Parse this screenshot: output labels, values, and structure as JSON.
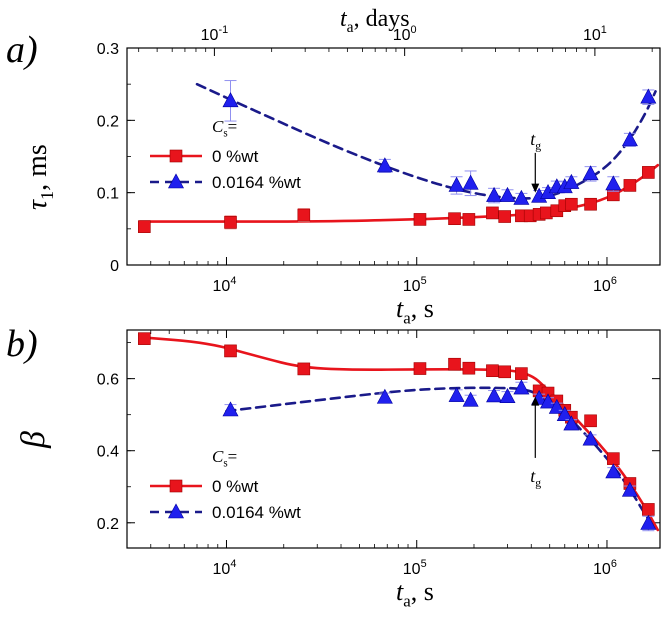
{
  "chart_data": [
    {
      "type": "scatter",
      "panel_label": "a)",
      "ylabel": "τ1, ms",
      "xlabel": "ta, s",
      "top_axis_label": "ta, days",
      "x_scale": "log",
      "xlim": [
        3000,
        1900000
      ],
      "ylim": [
        0,
        0.3
      ],
      "y_ticks": [
        "0",
        "0.1",
        "0.2",
        "0.3"
      ],
      "x_ticks": [
        {
          "base": "10",
          "exp": "4"
        },
        {
          "base": "10",
          "exp": "5"
        },
        {
          "base": "10",
          "exp": "6"
        }
      ],
      "top_ticks": [
        {
          "base": "10",
          "exp": "-1"
        },
        {
          "base": "10",
          "exp": "0"
        },
        {
          "base": "10",
          "exp": "1"
        }
      ],
      "legend": {
        "header": "Cs=",
        "entries": [
          "0 %wt",
          "0.0164 %wt"
        ],
        "position": "left"
      },
      "annotation": {
        "text": "tg",
        "x": 420000,
        "y_from": 0.155,
        "y_to": 0.1
      },
      "series": [
        {
          "name": "0 %wt",
          "color": "#e8141c",
          "marker": "square",
          "points": [
            [
              3700,
              0.053
            ],
            [
              10500,
              0.059
            ],
            [
              25500,
              0.069
            ],
            [
              104000,
              0.063
            ],
            [
              158000,
              0.064
            ],
            [
              188000,
              0.063
            ],
            [
              250000,
              0.072
            ],
            [
              290000,
              0.067
            ],
            [
              355000,
              0.068
            ],
            [
              395000,
              0.068
            ],
            [
              440000,
              0.07
            ],
            [
              480000,
              0.072
            ],
            [
              545000,
              0.075
            ],
            [
              600000,
              0.082
            ],
            [
              650000,
              0.084
            ],
            [
              820000,
              0.084
            ],
            [
              1080000,
              0.097
            ],
            [
              1320000,
              0.11
            ],
            [
              1650000,
              0.128
            ]
          ],
          "errors": [
            0.007,
            0.009,
            0.009,
            0.005,
            0.005,
            0.005,
            0.006,
            0.005,
            0.005,
            0.005,
            0.005,
            0.005,
            0.005,
            0.005,
            0.005,
            0.006,
            0.007,
            0.007,
            0.008
          ],
          "fit": [
            [
              3500,
              0.06
            ],
            [
              30000,
              0.06
            ],
            [
              100000,
              0.063
            ],
            [
              200000,
              0.066
            ],
            [
              400000,
              0.07
            ],
            [
              700000,
              0.08
            ],
            [
              1000000,
              0.092
            ],
            [
              1400000,
              0.113
            ],
            [
              1850000,
              0.138
            ]
          ]
        },
        {
          "name": "0.0164 %wt",
          "color": "#2020ee",
          "marker": "triangle",
          "points": [
            [
              10500,
              0.227
            ],
            [
              68000,
              0.137
            ],
            [
              162000,
              0.11
            ],
            [
              192000,
              0.113
            ],
            [
              255000,
              0.096
            ],
            [
              300000,
              0.096
            ],
            [
              355000,
              0.092
            ],
            [
              440000,
              0.095
            ],
            [
              490000,
              0.1
            ],
            [
              545000,
              0.108
            ],
            [
              600000,
              0.108
            ],
            [
              650000,
              0.114
            ],
            [
              820000,
              0.126
            ],
            [
              1080000,
              0.112
            ],
            [
              1320000,
              0.173
            ],
            [
              1650000,
              0.232
            ]
          ],
          "errors": [
            0.028,
            0.009,
            0.012,
            0.017,
            0.01,
            0.008,
            0.007,
            0.008,
            0.007,
            0.008,
            0.007,
            0.008,
            0.01,
            0.01,
            0.009,
            0.01
          ],
          "fit": [
            [
              7000,
              0.25
            ],
            [
              15000,
              0.21
            ],
            [
              40000,
              0.16
            ],
            [
              100000,
              0.12
            ],
            [
              200000,
              0.098
            ],
            [
              350000,
              0.091
            ],
            [
              500000,
              0.094
            ],
            [
              700000,
              0.11
            ],
            [
              1000000,
              0.135
            ],
            [
              1300000,
              0.17
            ],
            [
              1600000,
              0.21
            ],
            [
              1800000,
              0.24
            ]
          ]
        }
      ]
    },
    {
      "type": "scatter",
      "panel_label": "b)",
      "ylabel": "β",
      "xlabel": "ta, s",
      "x_scale": "log",
      "xlim": [
        3000,
        1900000
      ],
      "ylim": [
        0.13,
        0.735
      ],
      "y_ticks": [
        "0.2",
        "0.4",
        "0.6"
      ],
      "y_tick_values": [
        0.2,
        0.4,
        0.6
      ],
      "x_ticks": [
        {
          "base": "10",
          "exp": "4"
        },
        {
          "base": "10",
          "exp": "5"
        },
        {
          "base": "10",
          "exp": "6"
        }
      ],
      "legend": {
        "header": "Cs=",
        "entries": [
          "0 %wt",
          "0.0164 %wt"
        ],
        "position": "left"
      },
      "annotation": {
        "text": "tg",
        "x": 420000,
        "y_from": 0.38,
        "y_to": 0.55
      },
      "series": [
        {
          "name": "0 %wt",
          "color": "#e8141c",
          "marker": "square",
          "points": [
            [
              3700,
              0.711
            ],
            [
              10500,
              0.677
            ],
            [
              25500,
              0.627
            ],
            [
              104000,
              0.628
            ],
            [
              158000,
              0.64
            ],
            [
              188000,
              0.629
            ],
            [
              250000,
              0.622
            ],
            [
              290000,
              0.619
            ],
            [
              355000,
              0.614
            ],
            [
              440000,
              0.566
            ],
            [
              490000,
              0.56
            ],
            [
              545000,
              0.538
            ],
            [
              600000,
              0.512
            ],
            [
              650000,
              0.493
            ],
            [
              820000,
              0.483
            ],
            [
              1080000,
              0.378
            ],
            [
              1320000,
              0.309
            ],
            [
              1650000,
              0.237
            ]
          ],
          "errors": [
            0.012,
            0.016,
            0.012,
            0.012,
            0.012,
            0.012,
            0.012,
            0.012,
            0.012,
            0.012,
            0.012,
            0.012,
            0.012,
            0.012,
            0.012,
            0.012,
            0.012,
            0.012
          ],
          "fit": [
            [
              3500,
              0.715
            ],
            [
              8000,
              0.7
            ],
            [
              15000,
              0.66
            ],
            [
              25000,
              0.63
            ],
            [
              50000,
              0.624
            ],
            [
              100000,
              0.626
            ],
            [
              200000,
              0.626
            ],
            [
              380000,
              0.622
            ],
            [
              500000,
              0.565
            ],
            [
              700000,
              0.485
            ],
            [
              1000000,
              0.395
            ],
            [
              1300000,
              0.315
            ],
            [
              1600000,
              0.24
            ],
            [
              1850000,
              0.18
            ]
          ]
        },
        {
          "name": "0.0164 %wt",
          "color": "#2020ee",
          "marker": "triangle",
          "points": [
            [
              10500,
              0.513
            ],
            [
              68000,
              0.548
            ],
            [
              162000,
              0.553
            ],
            [
              192000,
              0.54
            ],
            [
              255000,
              0.552
            ],
            [
              300000,
              0.55
            ],
            [
              355000,
              0.574
            ],
            [
              440000,
              0.545
            ],
            [
              490000,
              0.535
            ],
            [
              545000,
              0.52
            ],
            [
              600000,
              0.5
            ],
            [
              650000,
              0.474
            ],
            [
              820000,
              0.432
            ],
            [
              1080000,
              0.341
            ],
            [
              1320000,
              0.29
            ],
            [
              1650000,
              0.198
            ]
          ],
          "errors": [
            0.015,
            0.012,
            0.016,
            0.014,
            0.015,
            0.014,
            0.016,
            0.012,
            0.012,
            0.012,
            0.012,
            0.012,
            0.012,
            0.012,
            0.012,
            0.02
          ],
          "fit": [
            [
              10000,
              0.51
            ],
            [
              30000,
              0.54
            ],
            [
              80000,
              0.566
            ],
            [
              150000,
              0.574
            ],
            [
              250000,
              0.575
            ],
            [
              380000,
              0.572
            ],
            [
              500000,
              0.54
            ],
            [
              700000,
              0.47
            ],
            [
              1000000,
              0.38
            ],
            [
              1300000,
              0.3
            ],
            [
              1600000,
              0.22
            ],
            [
              1750000,
              0.19
            ]
          ]
        }
      ]
    }
  ]
}
